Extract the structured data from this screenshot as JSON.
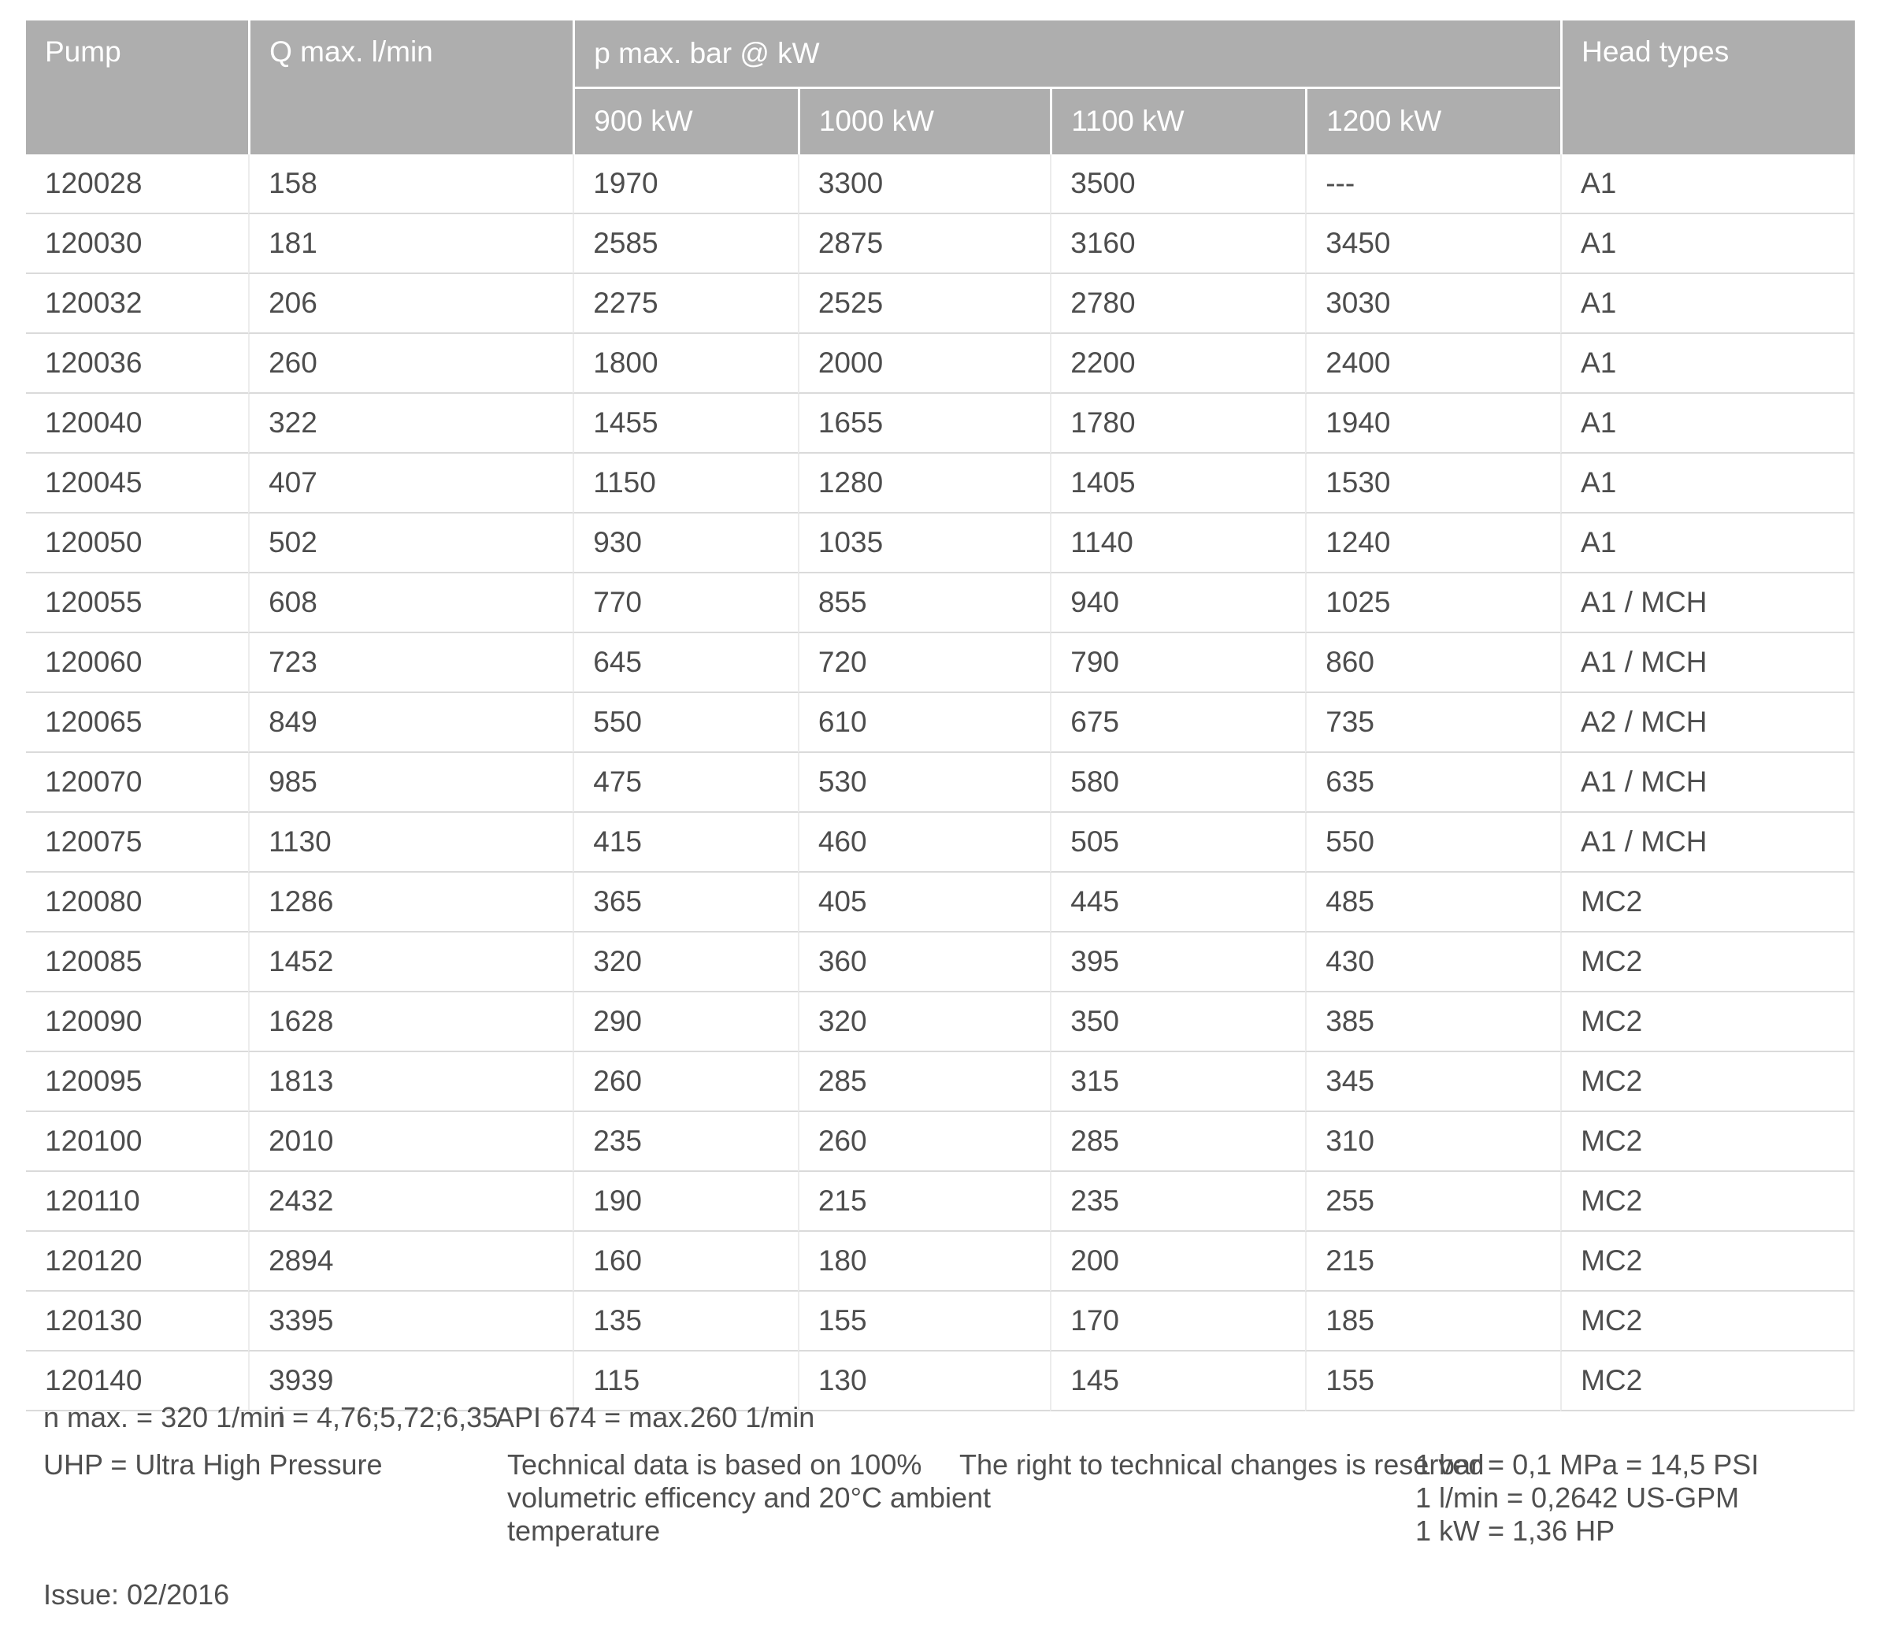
{
  "table": {
    "columns": {
      "pump": "Pump",
      "q_max": "Q max. l/min",
      "p_max_group": "p max. bar @ kW",
      "kw": [
        "900 kW",
        "1000 kW",
        "1100 kW",
        "1200 kW"
      ],
      "head_types": "Head types"
    },
    "rows": [
      {
        "pump": "120028",
        "q": "158",
        "kw900": "1970",
        "kw1000": "3300",
        "kw1100": "3500",
        "kw1200": "---",
        "head": "A1"
      },
      {
        "pump": "120030",
        "q": "181",
        "kw900": "2585",
        "kw1000": "2875",
        "kw1100": "3160",
        "kw1200": "3450",
        "head": "A1"
      },
      {
        "pump": "120032",
        "q": "206",
        "kw900": "2275",
        "kw1000": "2525",
        "kw1100": "2780",
        "kw1200": "3030",
        "head": "A1"
      },
      {
        "pump": "120036",
        "q": "260",
        "kw900": "1800",
        "kw1000": "2000",
        "kw1100": "2200",
        "kw1200": "2400",
        "head": "A1"
      },
      {
        "pump": "120040",
        "q": "322",
        "kw900": "1455",
        "kw1000": "1655",
        "kw1100": "1780",
        "kw1200": "1940",
        "head": "A1"
      },
      {
        "pump": "120045",
        "q": "407",
        "kw900": "1150",
        "kw1000": "1280",
        "kw1100": "1405",
        "kw1200": "1530",
        "head": "A1"
      },
      {
        "pump": "120050",
        "q": "502",
        "kw900": "930",
        "kw1000": "1035",
        "kw1100": "1140",
        "kw1200": "1240",
        "head": "A1"
      },
      {
        "pump": "120055",
        "q": "608",
        "kw900": "770",
        "kw1000": "855",
        "kw1100": "940",
        "kw1200": "1025",
        "head": "A1 / MCH"
      },
      {
        "pump": "120060",
        "q": "723",
        "kw900": "645",
        "kw1000": "720",
        "kw1100": "790",
        "kw1200": "860",
        "head": "A1 / MCH"
      },
      {
        "pump": "120065",
        "q": "849",
        "kw900": "550",
        "kw1000": "610",
        "kw1100": "675",
        "kw1200": "735",
        "head": "A2 / MCH"
      },
      {
        "pump": "120070",
        "q": "985",
        "kw900": "475",
        "kw1000": "530",
        "kw1100": "580",
        "kw1200": "635",
        "head": "A1 / MCH"
      },
      {
        "pump": "120075",
        "q": "1130",
        "kw900": "415",
        "kw1000": "460",
        "kw1100": "505",
        "kw1200": "550",
        "head": "A1 / MCH"
      },
      {
        "pump": "120080",
        "q": "1286",
        "kw900": "365",
        "kw1000": "405",
        "kw1100": "445",
        "kw1200": "485",
        "head": "MC2"
      },
      {
        "pump": "120085",
        "q": "1452",
        "kw900": "320",
        "kw1000": "360",
        "kw1100": "395",
        "kw1200": "430",
        "head": "MC2"
      },
      {
        "pump": "120090",
        "q": "1628",
        "kw900": "290",
        "kw1000": "320",
        "kw1100": "350",
        "kw1200": "385",
        "head": "MC2"
      },
      {
        "pump": "120095",
        "q": "1813",
        "kw900": "260",
        "kw1000": "285",
        "kw1100": "315",
        "kw1200": "345",
        "head": "MC2"
      },
      {
        "pump": "120100",
        "q": "2010",
        "kw900": "235",
        "kw1000": "260",
        "kw1100": "285",
        "kw1200": "310",
        "head": "MC2"
      },
      {
        "pump": "120110",
        "q": "2432",
        "kw900": "190",
        "kw1000": "215",
        "kw1100": "235",
        "kw1200": "255",
        "head": "MC2"
      },
      {
        "pump": "120120",
        "q": "2894",
        "kw900": "160",
        "kw1000": "180",
        "kw1100": "200",
        "kw1200": "215",
        "head": "MC2"
      },
      {
        "pump": "120130",
        "q": "3395",
        "kw900": "135",
        "kw1000": "155",
        "kw1100": "170",
        "kw1200": "185",
        "head": "MC2"
      },
      {
        "pump": "120140",
        "q": "3939",
        "kw900": "115",
        "kw1000": "130",
        "kw1100": "145",
        "kw1200": "155",
        "head": "MC2"
      }
    ]
  },
  "footnotes": {
    "n_max": "n max. = 320 1/min",
    "i_ratio": "i = 4,76;5,72;6,35",
    "api": "API 674 = max.260 1/min",
    "uhp": "UHP = Ultra High Pressure",
    "technical_lines": {
      "0": "Technical data is based on 100%",
      "1": "volumetric efficency and 20°C ambient",
      "2": "temperature"
    },
    "rights": "The right to technical changes is reserved",
    "conversions": {
      "0": "1 bar = 0,1 MPa = 14,5 PSI",
      "1": "1 l/min = 0,2642 US-GPM",
      "2": "1 kW = 1,36 HP"
    },
    "issue": "Issue: 02/2016"
  },
  "colors": {
    "header_bg": "#aeaeae",
    "header_text": "#ffffff",
    "body_text": "#4d4d4d",
    "row_separator": "#dadada",
    "column_separator": "#ececec"
  }
}
